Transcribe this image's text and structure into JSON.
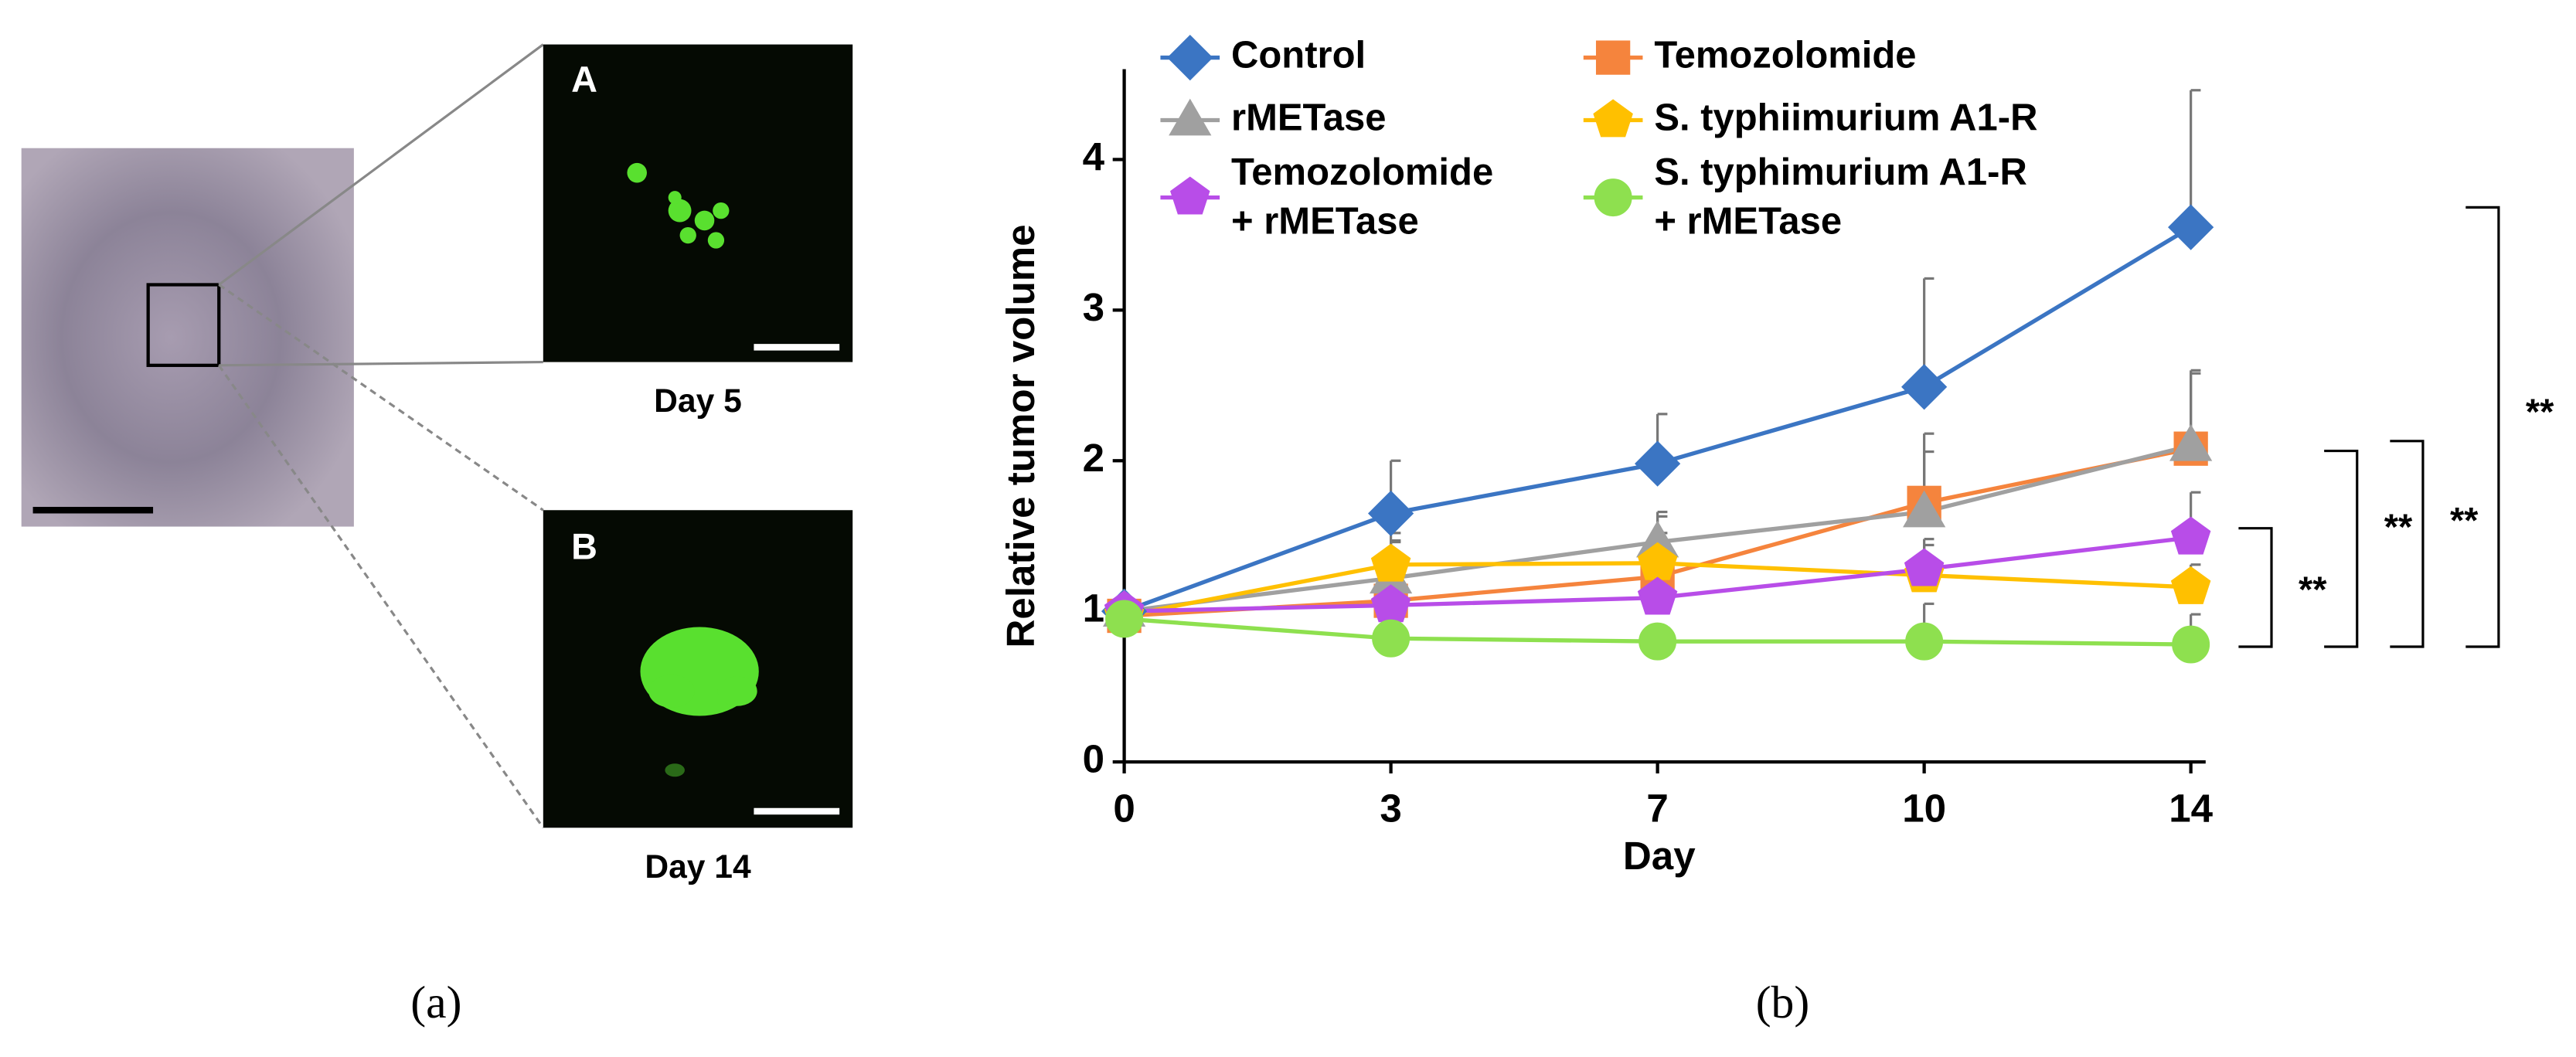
{
  "panel_a": {
    "inset_a": "A",
    "inset_a_caption": "Day 5",
    "inset_b": "B",
    "inset_b_caption": "Day 14"
  },
  "captions": [
    "(a)",
    "(b)"
  ],
  "chart_data": {
    "type": "line",
    "y_label": "Relative tumor volume",
    "x_label": "Day",
    "categories": [
      "0",
      "3",
      "7",
      "10",
      "14"
    ],
    "ylim": [
      0,
      4.6
    ],
    "yticks": [
      0,
      1,
      2,
      3,
      4
    ],
    "series": [
      {
        "name": "Control",
        "color": "#3b75c3",
        "marker": "diamond",
        "values": [
          1.0,
          1.65,
          1.98,
          2.49,
          3.55
        ],
        "errors": [
          0,
          0.35,
          0.33,
          0.72,
          0.91
        ]
      },
      {
        "name": "Temozolomide",
        "color": "#f5843d",
        "marker": "square",
        "values": [
          0.97,
          1.07,
          1.23,
          1.72,
          2.08
        ],
        "errors": [
          0,
          0.4,
          0.4,
          0.46,
          0.5
        ]
      },
      {
        "name": "rMETase",
        "color": "#a0a0a0",
        "marker": "triangle",
        "values": [
          1.0,
          1.22,
          1.46,
          1.66,
          2.1
        ],
        "errors": [
          0,
          0.3,
          0.2,
          0.4,
          0.5
        ]
      },
      {
        "name": "S. typhiimurium A1-R",
        "color": "#ffc000",
        "marker": "pentagon",
        "values": [
          0.97,
          1.31,
          1.32,
          1.24,
          1.16
        ],
        "errors": [
          0,
          0.15,
          0.2,
          0.2,
          0.15
        ]
      },
      {
        "name": "Temozolomide\n+ rMETase",
        "color": "#b84de8",
        "marker": "pentagon",
        "values": [
          1.0,
          1.04,
          1.09,
          1.28,
          1.49
        ],
        "errors": [
          0,
          0.1,
          0.2,
          0.2,
          0.3
        ]
      },
      {
        "name": "S. typhimurium A1-R\n+ rMETase",
        "color": "#8ee04f",
        "marker": "circle",
        "values": [
          0.95,
          0.82,
          0.8,
          0.8,
          0.78
        ],
        "errors": [
          0,
          0.1,
          0.1,
          0.25,
          0.2
        ]
      }
    ],
    "annotations": [
      "**",
      "**",
      "**",
      "**"
    ]
  }
}
